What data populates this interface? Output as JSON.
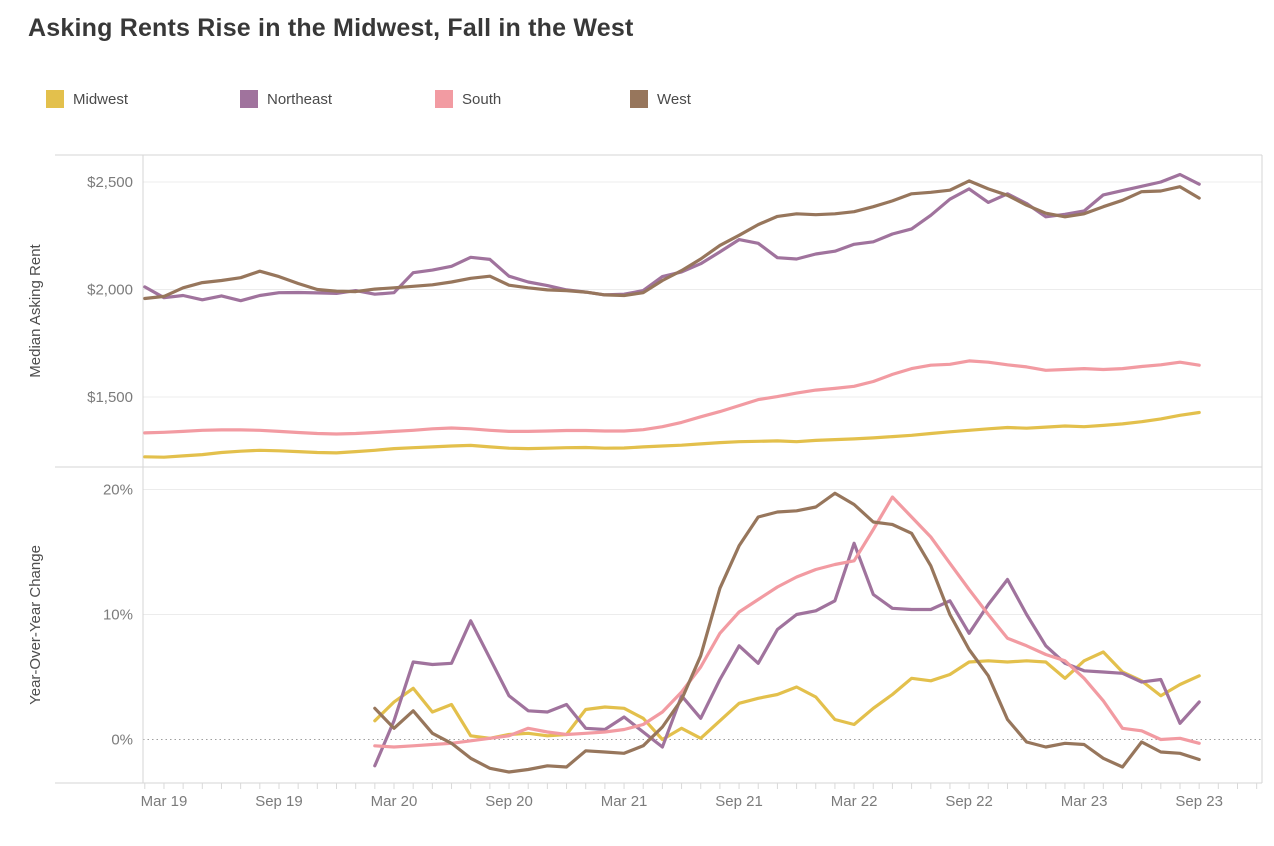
{
  "title": "Asking Rents Rise in the Midwest, Fall in the West",
  "legend": [
    {
      "label": "Midwest",
      "color": "#e3c04c"
    },
    {
      "label": "Northeast",
      "color": "#a0739d"
    },
    {
      "label": "South",
      "color": "#f29ba2"
    },
    {
      "label": "West",
      "color": "#97765c"
    }
  ],
  "chart_data": {
    "type": "line",
    "x": [
      "Feb 19",
      "Mar 19",
      "Apr 19",
      "May 19",
      "Jun 19",
      "Jul 19",
      "Aug 19",
      "Sep 19",
      "Oct 19",
      "Nov 19",
      "Dec 19",
      "Jan 20",
      "Feb 20",
      "Mar 20",
      "Apr 20",
      "May 20",
      "Jun 20",
      "Jul 20",
      "Aug 20",
      "Sep 20",
      "Oct 20",
      "Nov 20",
      "Dec 20",
      "Jan 21",
      "Feb 21",
      "Mar 21",
      "Apr 21",
      "May 21",
      "Jun 21",
      "Jul 21",
      "Aug 21",
      "Sep 21",
      "Oct 21",
      "Nov 21",
      "Dec 21",
      "Jan 22",
      "Feb 22",
      "Mar 22",
      "Apr 22",
      "May 22",
      "Jun 22",
      "Jul 22",
      "Aug 22",
      "Sep 22",
      "Oct 22",
      "Nov 22",
      "Dec 22",
      "Jan 23",
      "Feb 23",
      "Mar 23",
      "Apr 23",
      "May 23",
      "Jun 23",
      "Jul 23",
      "Aug 23",
      "Sep 23"
    ],
    "x_ticks": [
      {
        "label": "Mar 19",
        "i": 1
      },
      {
        "label": "Sep 19",
        "i": 7
      },
      {
        "label": "Mar 20",
        "i": 13
      },
      {
        "label": "Sep 20",
        "i": 19
      },
      {
        "label": "Mar 21",
        "i": 25
      },
      {
        "label": "Sep 21",
        "i": 31
      },
      {
        "label": "Mar 22",
        "i": 37
      },
      {
        "label": "Sep 22",
        "i": 43
      },
      {
        "label": "Mar 23",
        "i": 49
      },
      {
        "label": "Sep 23",
        "i": 55
      }
    ],
    "panels": [
      {
        "ylabel": "Median Asking Rent",
        "yticks": [
          {
            "label": "$2,500",
            "value": 2500
          },
          {
            "label": "$2,000",
            "value": 2000
          },
          {
            "label": "$1,500",
            "value": 1500
          }
        ],
        "ylim": [
          1160,
          2630
        ],
        "start_month_index": 0,
        "series": [
          {
            "name": "Midwest",
            "color": "#e3c04c",
            "values": [
              1222,
              1220,
              1226,
              1232,
              1242,
              1248,
              1252,
              1250,
              1246,
              1242,
              1240,
              1246,
              1252,
              1260,
              1264,
              1268,
              1272,
              1275,
              1268,
              1262,
              1260,
              1262,
              1264,
              1265,
              1262,
              1263,
              1268,
              1272,
              1276,
              1282,
              1288,
              1292,
              1294,
              1296,
              1292,
              1298,
              1302,
              1305,
              1310,
              1316,
              1322,
              1330,
              1338,
              1345,
              1352,
              1358,
              1355,
              1360,
              1365,
              1362,
              1368,
              1375,
              1385,
              1398,
              1415,
              1428
            ]
          },
          {
            "name": "Northeast",
            "color": "#a0739d",
            "values": [
              2012,
              1962,
              1972,
              1952,
              1970,
              1948,
              1972,
              1985,
              1986,
              1984,
              1982,
              1995,
              1978,
              1985,
              2078,
              2090,
              2108,
              2150,
              2140,
              2062,
              2035,
              2018,
              1998,
              1988,
              1975,
              1978,
              1995,
              2060,
              2082,
              2120,
              2175,
              2232,
              2215,
              2148,
              2142,
              2165,
              2178,
              2210,
              2222,
              2258,
              2282,
              2345,
              2420,
              2468,
              2405,
              2445,
              2400,
              2338,
              2350,
              2365,
              2440,
              2460,
              2480,
              2500,
              2535,
              2490
            ]
          },
          {
            "name": "South",
            "color": "#f29ba2",
            "values": [
              1333,
              1336,
              1340,
              1345,
              1347,
              1347,
              1345,
              1340,
              1335,
              1330,
              1328,
              1330,
              1335,
              1340,
              1345,
              1352,
              1356,
              1352,
              1345,
              1340,
              1340,
              1342,
              1344,
              1344,
              1342,
              1342,
              1348,
              1362,
              1382,
              1408,
              1432,
              1460,
              1488,
              1502,
              1518,
              1532,
              1540,
              1550,
              1572,
              1605,
              1632,
              1648,
              1652,
              1668,
              1662,
              1650,
              1640,
              1624,
              1628,
              1632,
              1628,
              1632,
              1642,
              1650,
              1662,
              1648
            ]
          },
          {
            "name": "West",
            "color": "#97765c",
            "values": [
              1958,
              1968,
              2008,
              2032,
              2042,
              2055,
              2085,
              2060,
              2028,
              2000,
              1992,
              1990,
              2002,
              2008,
              2015,
              2022,
              2035,
              2052,
              2062,
              2020,
              2008,
              1998,
              1995,
              1988,
              1975,
              1972,
              1985,
              2042,
              2088,
              2142,
              2205,
              2252,
              2302,
              2340,
              2352,
              2348,
              2352,
              2362,
              2385,
              2412,
              2445,
              2452,
              2462,
              2505,
              2468,
              2438,
              2392,
              2355,
              2338,
              2352,
              2385,
              2415,
              2455,
              2458,
              2478,
              2425
            ]
          }
        ]
      },
      {
        "ylabel": "Year-Over-Year Change",
        "yticks": [
          {
            "label": "20%",
            "value": 20
          },
          {
            "label": "10%",
            "value": 10
          },
          {
            "label": "0%",
            "value": 0
          }
        ],
        "ylim": [
          -3.5,
          21.5
        ],
        "zero_line": "dotted",
        "start_month_index": 12,
        "series": [
          {
            "name": "Midwest",
            "color": "#e3c04c",
            "values": [
              1.5,
              3.0,
              4.1,
              2.2,
              2.8,
              0.3,
              0.1,
              0.4,
              0.5,
              0.3,
              0.4,
              2.4,
              2.6,
              2.5,
              1.7,
              0.0,
              0.9,
              0.1,
              1.5,
              2.9,
              3.3,
              3.6,
              4.2,
              3.4,
              1.6,
              1.2,
              2.5,
              3.6,
              4.9,
              4.7,
              5.2,
              6.2,
              6.3,
              6.2,
              6.3,
              6.2,
              4.9,
              6.3,
              7.0,
              5.4,
              4.7,
              3.5,
              4.4,
              5.1
            ]
          },
          {
            "name": "Northeast",
            "color": "#a0739d",
            "values": [
              -2.1,
              1.5,
              6.2,
              6.0,
              6.1,
              9.5,
              6.5,
              3.5,
              2.3,
              2.2,
              2.8,
              0.9,
              0.8,
              1.8,
              0.6,
              -0.6,
              3.5,
              1.7,
              4.8,
              7.5,
              6.1,
              8.8,
              10.0,
              10.3,
              11.1,
              15.7,
              11.6,
              10.5,
              10.4,
              10.4,
              11.1,
              8.5,
              10.8,
              12.8,
              10.0,
              7.5,
              6.1,
              5.5,
              5.4,
              5.3,
              4.6,
              4.8,
              1.3,
              3.0
            ]
          },
          {
            "name": "South",
            "color": "#f29ba2",
            "values": [
              -0.5,
              -0.6,
              -0.5,
              -0.4,
              -0.3,
              -0.1,
              0.1,
              0.3,
              0.9,
              0.6,
              0.4,
              0.5,
              0.6,
              0.8,
              1.2,
              2.2,
              3.8,
              5.8,
              8.5,
              10.2,
              11.2,
              12.2,
              13.0,
              13.6,
              14.0,
              14.3,
              16.8,
              19.4,
              17.8,
              16.2,
              14.1,
              12.0,
              10.0,
              8.1,
              7.5,
              6.8,
              6.3,
              4.9,
              3.1,
              0.9,
              0.7,
              0.0,
              0.1,
              -0.3
            ]
          },
          {
            "name": "West",
            "color": "#97765c",
            "values": [
              2.5,
              0.9,
              2.3,
              0.5,
              -0.3,
              -1.5,
              -2.3,
              -2.6,
              -2.4,
              -2.1,
              -2.2,
              -0.9,
              -1.0,
              -1.1,
              -0.5,
              1.0,
              3.2,
              6.7,
              12.1,
              15.5,
              17.8,
              18.2,
              18.3,
              18.6,
              19.7,
              18.8,
              17.4,
              17.2,
              16.5,
              13.9,
              10.0,
              7.2,
              5.1,
              1.6,
              -0.2,
              -0.6,
              -0.3,
              -0.4,
              -1.5,
              -2.2,
              -0.2,
              -1.0,
              -1.1,
              -1.6
            ]
          }
        ]
      }
    ],
    "grid": "horizontal-only",
    "legend_position": "top"
  },
  "style_colors": {
    "title_text": "#383838",
    "axis_text": "#7b7b7b",
    "axis_title_text": "#4e4e4e",
    "border": "#d5d5d5",
    "gridline": "#ececec",
    "zero_line": "#9f9f9f"
  }
}
